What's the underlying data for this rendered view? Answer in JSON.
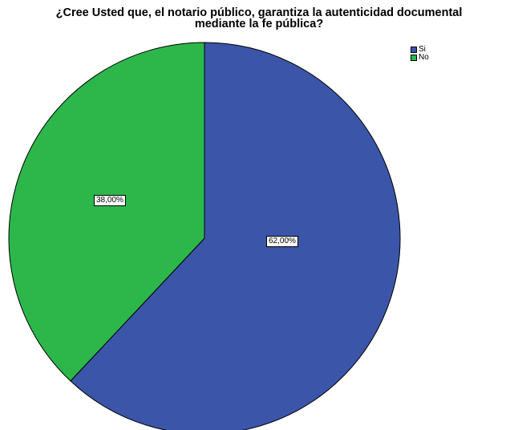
{
  "chart_data": {
    "type": "pie",
    "title": "¿Cree Usted que, el notario público, garantiza la autenticidad documental mediante la fe pública?",
    "title_lines": [
      "¿Cree Usted que, el notario público, garantiza la autenticidad documental",
      "mediante la fe pública?"
    ],
    "categories": [
      "Si",
      "No"
    ],
    "values": [
      62.0,
      38.0
    ],
    "data_labels": [
      "62,00%",
      "38,00%"
    ],
    "colors": [
      "#3b55a8",
      "#2db74b"
    ],
    "legend": "top-right",
    "start_angle": "12 o'clock",
    "direction": "clockwise"
  }
}
